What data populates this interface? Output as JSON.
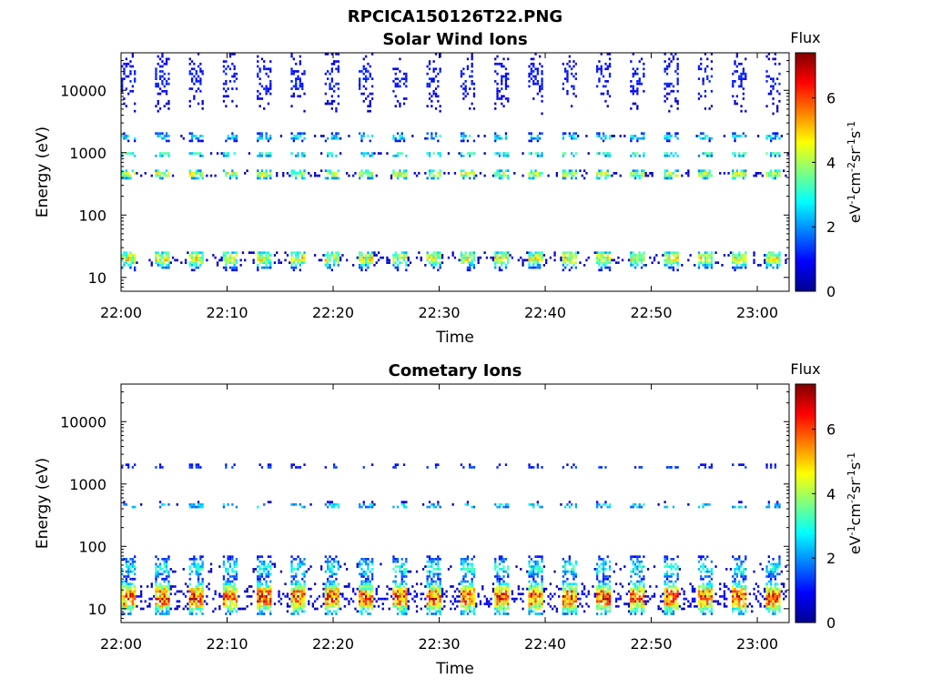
{
  "figure_title": "RPCICA150126T22.PNG",
  "chart_data": [
    {
      "type": "heatmap",
      "title": "Solar Wind Ions",
      "xlabel": "Time",
      "ylabel": "Energy (eV)",
      "x_range": [
        "22:00",
        "23:03"
      ],
      "x_ticks": [
        "22:00",
        "22:10",
        "22:20",
        "22:30",
        "22:40",
        "22:50",
        "23:00"
      ],
      "y_scale": "log",
      "y_range": [
        6,
        40000
      ],
      "y_ticks": [
        {
          "value": 10,
          "label": "10"
        },
        {
          "value": 100,
          "label": "100"
        },
        {
          "value": 1000,
          "label": "1000"
        },
        {
          "value": 10000,
          "label": "10000"
        }
      ],
      "colorbar": {
        "title": "Flux",
        "range": [
          0,
          7.4
        ],
        "ticks": [
          "0",
          "2",
          "4",
          "6"
        ],
        "unit_parts": [
          "eV",
          "-1",
          "cm",
          "-2",
          "sr",
          "-1",
          "s",
          "-1"
        ],
        "colormap": "jet"
      },
      "sweep_period_min": 3.2,
      "bands": [
        {
          "center_eV": 20,
          "low_eV": 13,
          "high_eV": 27,
          "peak_flux": 5.0
        },
        {
          "center_eV": 450,
          "low_eV": 380,
          "high_eV": 560,
          "peak_flux": 4.9
        },
        {
          "center_eV": 950,
          "low_eV": 850,
          "high_eV": 1050,
          "peak_flux": 3.6
        },
        {
          "center_eV": 1800,
          "low_eV": 1500,
          "high_eV": 2100,
          "peak_flux": 3.0
        },
        {
          "center_eV": 15000,
          "low_eV": 3000,
          "high_eV": 40000,
          "peak_flux": 1.2
        }
      ]
    },
    {
      "type": "heatmap",
      "title": "Cometary Ions",
      "xlabel": "Time",
      "ylabel": "Energy (eV)",
      "x_range": [
        "22:00",
        "23:03"
      ],
      "x_ticks": [
        "22:00",
        "22:10",
        "22:20",
        "22:30",
        "22:40",
        "22:50",
        "23:00"
      ],
      "y_scale": "log",
      "y_range": [
        6,
        40000
      ],
      "y_ticks": [
        {
          "value": 10,
          "label": "10"
        },
        {
          "value": 100,
          "label": "100"
        },
        {
          "value": 1000,
          "label": "1000"
        },
        {
          "value": 10000,
          "label": "10000"
        }
      ],
      "colorbar": {
        "title": "Flux",
        "range": [
          0,
          7.4
        ],
        "ticks": [
          "0",
          "2",
          "4",
          "6"
        ],
        "unit_parts": [
          "eV",
          "-1",
          "cm",
          "-2",
          "sr",
          "-1",
          "s",
          "-1"
        ],
        "colormap": "jet"
      },
      "sweep_period_min": 3.2,
      "bands": [
        {
          "center_eV": 15,
          "low_eV": 8,
          "high_eV": 28,
          "peak_flux": 6.8
        },
        {
          "center_eV": 45,
          "low_eV": 28,
          "high_eV": 70,
          "peak_flux": 3.2
        },
        {
          "center_eV": 450,
          "low_eV": 400,
          "high_eV": 520,
          "peak_flux": 3.0
        },
        {
          "center_eV": 1900,
          "low_eV": 1700,
          "high_eV": 2100,
          "peak_flux": 1.5
        }
      ]
    }
  ]
}
